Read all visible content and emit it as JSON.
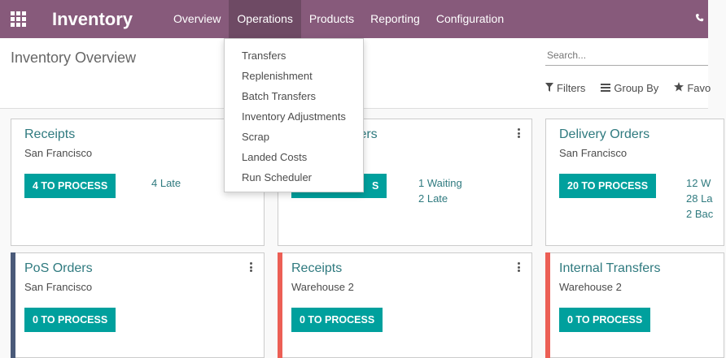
{
  "navbar": {
    "brand": "Inventory",
    "menu": [
      {
        "label": "Overview"
      },
      {
        "label": "Operations"
      },
      {
        "label": "Products"
      },
      {
        "label": "Reporting"
      },
      {
        "label": "Configuration"
      }
    ],
    "active_item": "Operations",
    "background_color": "#875a7b"
  },
  "control_panel": {
    "title": "Inventory Overview",
    "search_placeholder": "Search...",
    "filters_label": "Filters",
    "group_by_label": "Group By",
    "favorites_label": "Favo"
  },
  "operations_menu": {
    "items": [
      {
        "label": "Transfers"
      },
      {
        "label": "Replenishment"
      },
      {
        "label": "Batch Transfers"
      },
      {
        "label": "Inventory Adjustments"
      },
      {
        "label": "Scrap"
      },
      {
        "label": "Landed Costs"
      },
      {
        "label": "Run Scheduler"
      }
    ]
  },
  "cards": [
    {
      "title": "Receipts",
      "subtitle": "San Francisco",
      "button": "4 TO PROCESS",
      "stats": [
        "4 Late"
      ],
      "stripe_color": ""
    },
    {
      "title": "sfers",
      "subtitle": "",
      "button": "S",
      "stats": [
        "1 Waiting",
        "2 Late"
      ],
      "stripe_color": ""
    },
    {
      "title": "Delivery Orders",
      "subtitle": "San Francisco",
      "button": "20 TO PROCESS",
      "stats": [
        "12 W",
        "28 La",
        "2 Bac"
      ],
      "stripe_color": ""
    },
    {
      "title": "PoS Orders",
      "subtitle": "San Francisco",
      "button": "0 TO PROCESS",
      "stats": [],
      "stripe_color": "#4a5a79"
    },
    {
      "title": "Receipts",
      "subtitle": "Warehouse 2",
      "button": "0 TO PROCESS",
      "stats": [],
      "stripe_color": "#ec5f55"
    },
    {
      "title": "Internal Transfers",
      "subtitle": "Warehouse 2",
      "button": "0 TO PROCESS",
      "stats": [],
      "stripe_color": "#ec5f55"
    }
  ],
  "colors": {
    "accent": "#00a09d",
    "title_teal": "#2f7a7f"
  }
}
